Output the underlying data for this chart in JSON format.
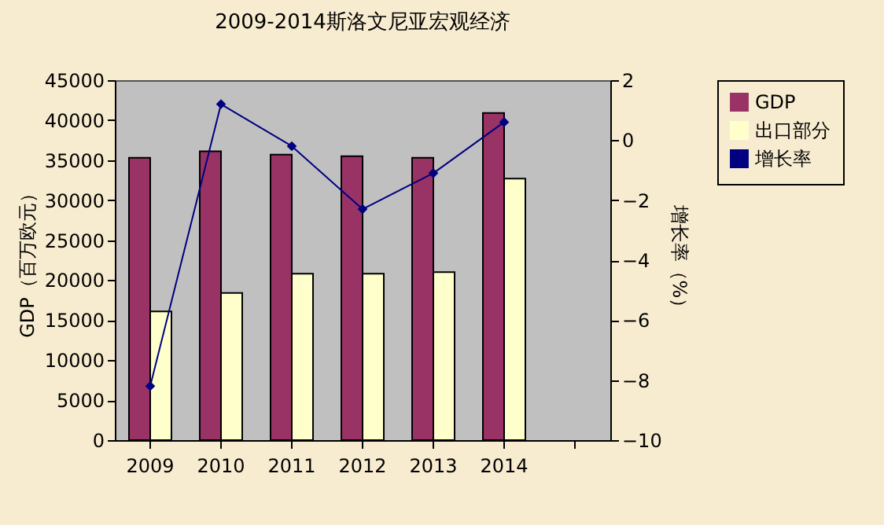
{
  "chart_data": {
    "type": "bar",
    "title": "2009-2014斯洛文尼亚宏观经济",
    "categories": [
      "2009",
      "2010",
      "2011",
      "2012",
      "2013",
      "2014",
      null
    ],
    "series": [
      {
        "name": "GDP",
        "color": "#993366",
        "values": [
          35300,
          36100,
          35700,
          35500,
          35300,
          40900,
          null
        ]
      },
      {
        "name": "出口部分",
        "color": "#ffffcc",
        "values": [
          16100,
          18400,
          20800,
          20800,
          21000,
          32700,
          null
        ]
      },
      {
        "name": "增长率",
        "color": "#000080",
        "type": "line",
        "axis": "y2",
        "marker": "diamond",
        "values": [
          -8.2,
          1.2,
          -0.2,
          -2.3,
          -1.1,
          0.6,
          null
        ]
      }
    ],
    "ylabel": "GDP（百万欧元）",
    "y2label": "增长率（%）",
    "ylim": [
      0,
      45000
    ],
    "yticks": [
      0,
      5000,
      10000,
      15000,
      20000,
      25000,
      30000,
      35000,
      40000,
      45000
    ],
    "y2lim": [
      -10,
      2
    ],
    "y2ticks": [
      -10,
      -8,
      -6,
      -4,
      -2,
      0,
      2
    ],
    "grid": false,
    "legend": "right"
  }
}
